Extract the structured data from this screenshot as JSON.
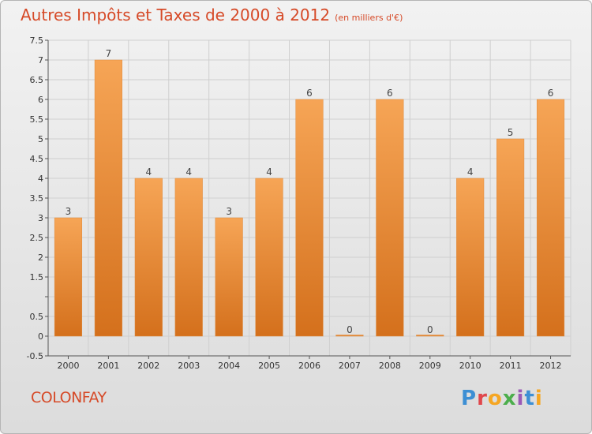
{
  "title": "Autres Impôts et Taxes de 2000 à 2012",
  "unit": "(en milliers d'€)",
  "commune": "COLONFAY",
  "logo": "Proxiti",
  "colors": {
    "bar": "#f0923a",
    "bar_dark": "#d97520",
    "title": "#d64a28",
    "grid": "#cfcfcf"
  },
  "chart_data": {
    "type": "bar",
    "title": "Autres Impôts et Taxes de 2000 à 2012",
    "subtitle": "(en milliers d'€)",
    "categories": [
      "2000",
      "2001",
      "2002",
      "2003",
      "2004",
      "2005",
      "2006",
      "2007",
      "2008",
      "2009",
      "2010",
      "2011",
      "2012"
    ],
    "values": [
      3,
      7,
      4,
      4,
      3,
      4,
      6,
      0,
      6,
      0,
      4,
      5,
      6
    ],
    "data_labels": [
      "3",
      "7",
      "4",
      "4",
      "3",
      "4",
      "6",
      "0",
      "6",
      "0",
      "4",
      "5",
      "6"
    ],
    "ylim": [
      -0.5,
      7.5
    ],
    "yticks": [
      -0.5,
      0,
      0.5,
      1,
      1.5,
      2,
      2.5,
      3,
      3.5,
      4,
      4.5,
      5,
      5.5,
      6,
      6.5,
      7,
      7.5
    ],
    "ytick_labels": [
      "-0.5",
      "0",
      "0.5",
      "",
      "1.5",
      "2",
      "2.5",
      "3",
      "3.5",
      "4",
      "4.5",
      "5",
      "5.5",
      "6",
      "6.5",
      "7",
      "7.5"
    ],
    "grid": true,
    "xlabel": "",
    "ylabel": ""
  }
}
